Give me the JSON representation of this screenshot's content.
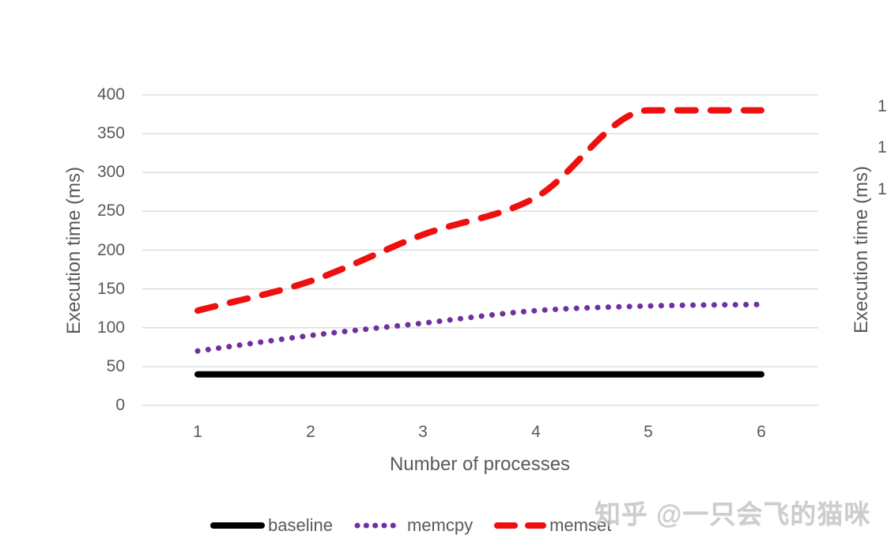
{
  "chart_data": {
    "type": "line",
    "title": "",
    "grid": true,
    "legend_position": "bottom",
    "categories": [
      1,
      2,
      3,
      4,
      5,
      6
    ],
    "x_axis": {
      "title": "Number of processes",
      "tick_labels": [
        "1",
        "2",
        "3",
        "4",
        "5",
        "6"
      ]
    },
    "y_axis": {
      "title": "Execution time (ms)",
      "ticks": [
        0,
        50,
        100,
        150,
        200,
        250,
        300,
        350,
        400
      ],
      "ylim": [
        0,
        400
      ]
    },
    "right_axis": {
      "title": "Execution time (ms)",
      "partial_tick_labels": [
        "1",
        "1",
        "1"
      ]
    },
    "series": [
      {
        "name": "baseline",
        "color": "#000000",
        "style": "solid",
        "values": [
          40,
          40,
          40,
          40,
          40,
          40
        ]
      },
      {
        "name": "memcpy",
        "color": "#7030A0",
        "style": "dotted",
        "values": [
          70,
          90,
          106,
          122,
          128,
          130
        ]
      },
      {
        "name": "memset",
        "color": "#EE0F0F",
        "style": "dashed",
        "values": [
          122,
          160,
          220,
          268,
          380,
          380
        ]
      }
    ]
  },
  "colors": {
    "text": "#595959",
    "gridline": "#D8D8D8"
  },
  "watermark": {
    "text": "知乎 @一只会飞的猫咪",
    "color": "#C8C8C8"
  }
}
